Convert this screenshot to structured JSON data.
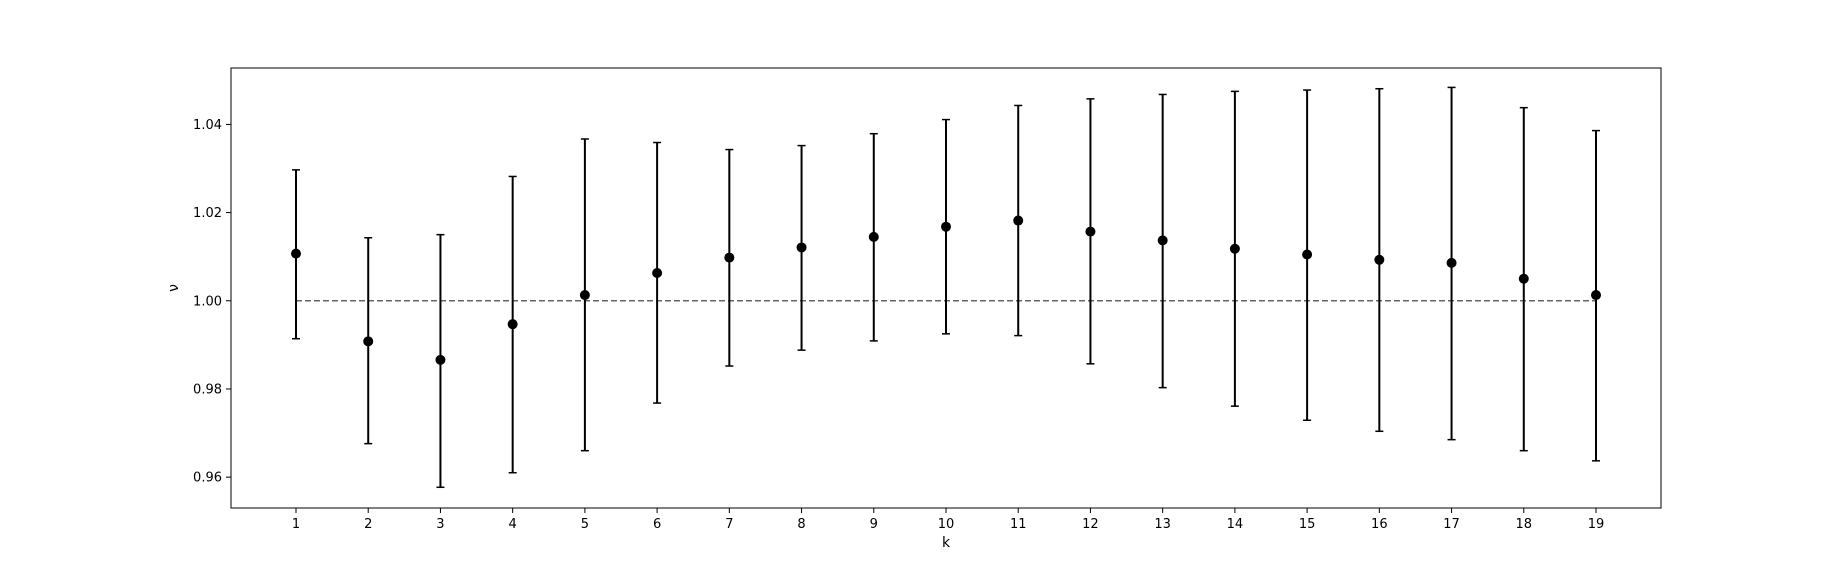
{
  "chart_data": {
    "type": "scatter",
    "title": "",
    "xlabel": "k",
    "ylabel": "ν",
    "x": [
      1,
      2,
      3,
      4,
      5,
      6,
      7,
      8,
      9,
      10,
      11,
      12,
      13,
      14,
      15,
      16,
      17,
      18,
      19
    ],
    "y": [
      1.0107,
      0.9908,
      0.9866,
      0.9947,
      1.0013,
      1.0063,
      1.0098,
      1.0121,
      1.0145,
      1.0168,
      1.0182,
      1.0157,
      1.0137,
      1.0118,
      1.0105,
      1.0093,
      1.0086,
      1.005,
      1.0013
    ],
    "y_lower": [
      0.9914,
      0.9676,
      0.9577,
      0.961,
      0.966,
      0.9768,
      0.9852,
      0.9888,
      0.9909,
      0.9925,
      0.9921,
      0.9857,
      0.9803,
      0.9761,
      0.9729,
      0.9704,
      0.9685,
      0.966,
      0.9637
    ],
    "y_upper": [
      1.0297,
      1.0143,
      1.015,
      1.0282,
      1.0367,
      1.0359,
      1.0343,
      1.0352,
      1.0379,
      1.0411,
      1.0443,
      1.0458,
      1.0468,
      1.0475,
      1.0478,
      1.0481,
      1.0484,
      1.0438,
      1.0386
    ],
    "reference_line": {
      "y": 1.0,
      "style": "dashed",
      "color": "#666666"
    },
    "xticks": [
      "1",
      "2",
      "3",
      "4",
      "5",
      "6",
      "7",
      "8",
      "9",
      "10",
      "11",
      "12",
      "13",
      "14",
      "15",
      "16",
      "17",
      "18",
      "19"
    ],
    "yticks": [
      "0.96",
      "0.98",
      "1.00",
      "1.02",
      "1.04"
    ],
    "ytick_values": [
      0.96,
      0.98,
      1.0,
      1.02,
      1.04
    ],
    "xlim": [
      0.1,
      19.9
    ],
    "ylim": [
      0.953,
      1.0528
    ],
    "grid": false,
    "colors": {
      "marker": "#000000",
      "errorbar": "#000000",
      "axes": "#000000"
    }
  }
}
